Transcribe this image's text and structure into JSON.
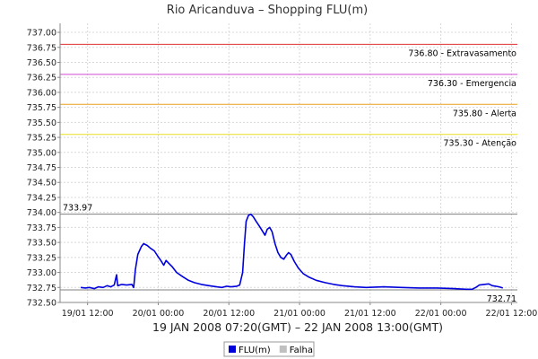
{
  "chart_data": {
    "type": "line",
    "title": "Rio Aricanduva – Shopping FLU(m)",
    "xlabel": "19 JAN 2008 07:20(GMT) – 22 JAN 2008 13:00(GMT)",
    "ylabel": "",
    "ylim": [
      732.5,
      737.15
    ],
    "yticks": [
      "732.50",
      "732.75",
      "733.00",
      "733.25",
      "733.50",
      "733.75",
      "734.00",
      "734.25",
      "734.50",
      "734.75",
      "735.00",
      "735.25",
      "735.50",
      "735.75",
      "736.00",
      "736.25",
      "736.50",
      "736.75",
      "737.00"
    ],
    "x_hours_range": [
      0,
      77.67
    ],
    "xticks": [
      {
        "label": "19/01 12:00",
        "hour": 4.67
      },
      {
        "label": "20/01 00:00",
        "hour": 16.67
      },
      {
        "label": "20/01 12:00",
        "hour": 28.67
      },
      {
        "label": "21/01 00:00",
        "hour": 40.67
      },
      {
        "label": "21/01 12:00",
        "hour": 52.67
      },
      {
        "label": "22/01 00:00",
        "hour": 64.67
      },
      {
        "label": "22/01 12:00",
        "hour": 76.67
      }
    ],
    "thresholds": [
      {
        "value": 736.8,
        "label": "736.80 - Extravasamento",
        "color": "#e03030"
      },
      {
        "value": 736.3,
        "label": "736.30 - Emergencia",
        "color": "#d24bd2"
      },
      {
        "value": 735.8,
        "label": "735.80 - Alerta",
        "color": "#e8a020"
      },
      {
        "value": 735.3,
        "label": "735.30 - Atenção",
        "color": "#e8e020"
      }
    ],
    "reference_lines": [
      {
        "value": 733.97,
        "label": "733.97",
        "label_position": "top-left"
      },
      {
        "value": 732.71,
        "label": "732.71",
        "label_position": "bottom-right"
      }
    ],
    "series": [
      {
        "name": "FLU(m)",
        "color": "#0000dd",
        "points": [
          [
            3.5,
            732.75
          ],
          [
            4.3,
            732.74
          ],
          [
            5.0,
            732.75
          ],
          [
            5.8,
            732.73
          ],
          [
            6.5,
            732.76
          ],
          [
            7.3,
            732.75
          ],
          [
            8.0,
            732.78
          ],
          [
            8.6,
            732.76
          ],
          [
            9.2,
            732.79
          ],
          [
            9.6,
            732.96
          ],
          [
            9.8,
            732.78
          ],
          [
            10.5,
            732.8
          ],
          [
            11.3,
            732.79
          ],
          [
            12.2,
            732.8
          ],
          [
            12.5,
            732.75
          ],
          [
            12.8,
            733.05
          ],
          [
            13.2,
            733.3
          ],
          [
            13.8,
            733.43
          ],
          [
            14.2,
            733.48
          ],
          [
            14.8,
            733.45
          ],
          [
            15.4,
            733.4
          ],
          [
            16.0,
            733.36
          ],
          [
            16.6,
            733.27
          ],
          [
            17.1,
            733.2
          ],
          [
            17.6,
            733.12
          ],
          [
            18.0,
            733.2
          ],
          [
            18.4,
            733.16
          ],
          [
            19.0,
            733.1
          ],
          [
            19.8,
            733.0
          ],
          [
            20.8,
            732.93
          ],
          [
            21.8,
            732.87
          ],
          [
            22.8,
            732.83
          ],
          [
            24.0,
            732.8
          ],
          [
            25.3,
            732.78
          ],
          [
            26.6,
            732.76
          ],
          [
            27.5,
            732.75
          ],
          [
            28.3,
            732.77
          ],
          [
            29.0,
            732.76
          ],
          [
            30.0,
            732.77
          ],
          [
            30.5,
            732.79
          ],
          [
            31.0,
            733.0
          ],
          [
            31.3,
            733.45
          ],
          [
            31.6,
            733.85
          ],
          [
            32.0,
            733.95
          ],
          [
            32.4,
            733.97
          ],
          [
            32.8,
            733.93
          ],
          [
            33.3,
            733.85
          ],
          [
            33.8,
            733.78
          ],
          [
            34.3,
            733.7
          ],
          [
            34.8,
            733.62
          ],
          [
            35.2,
            733.72
          ],
          [
            35.6,
            733.75
          ],
          [
            36.0,
            733.68
          ],
          [
            36.5,
            733.48
          ],
          [
            37.0,
            733.33
          ],
          [
            37.5,
            733.25
          ],
          [
            38.0,
            733.22
          ],
          [
            38.4,
            733.28
          ],
          [
            38.8,
            733.33
          ],
          [
            39.2,
            733.3
          ],
          [
            39.8,
            733.18
          ],
          [
            40.5,
            733.07
          ],
          [
            41.3,
            732.98
          ],
          [
            42.3,
            732.92
          ],
          [
            43.5,
            732.87
          ],
          [
            45.0,
            732.83
          ],
          [
            46.5,
            732.8
          ],
          [
            48.0,
            732.78
          ],
          [
            50.0,
            732.76
          ],
          [
            52.0,
            732.75
          ],
          [
            55.0,
            732.76
          ],
          [
            58.0,
            732.75
          ],
          [
            61.0,
            732.74
          ],
          [
            64.0,
            732.74
          ],
          [
            67.0,
            732.73
          ],
          [
            69.0,
            732.72
          ],
          [
            70.0,
            732.72
          ],
          [
            70.6,
            732.75
          ],
          [
            71.2,
            732.79
          ],
          [
            72.0,
            732.8
          ],
          [
            72.8,
            732.81
          ],
          [
            73.4,
            732.78
          ],
          [
            74.0,
            732.77
          ],
          [
            74.6,
            732.76
          ],
          [
            75.2,
            732.74
          ]
        ]
      }
    ],
    "legend": [
      {
        "name": "FLU(m)",
        "color": "#0000dd"
      },
      {
        "name": "Falha",
        "color": "#c0c0c0"
      }
    ],
    "grid": true,
    "legend_position": "bottom-center"
  }
}
